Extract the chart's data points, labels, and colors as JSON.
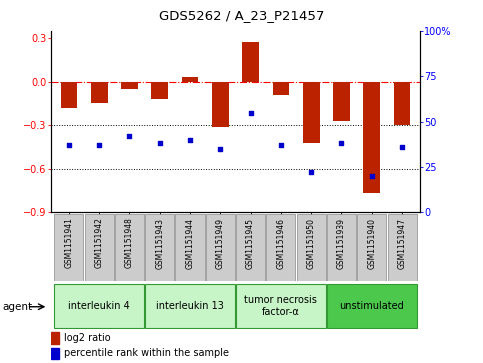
{
  "title": "GDS5262 / A_23_P21457",
  "samples": [
    "GSM1151941",
    "GSM1151942",
    "GSM1151948",
    "GSM1151943",
    "GSM1151944",
    "GSM1151949",
    "GSM1151945",
    "GSM1151946",
    "GSM1151950",
    "GSM1151939",
    "GSM1151940",
    "GSM1151947"
  ],
  "log2_ratio": [
    -0.18,
    -0.15,
    -0.05,
    -0.12,
    0.03,
    -0.31,
    0.27,
    -0.09,
    -0.42,
    -0.27,
    -0.77,
    -0.3
  ],
  "percentile_rank": [
    37,
    37,
    42,
    38,
    40,
    35,
    55,
    37,
    22,
    38,
    20,
    36
  ],
  "agents": [
    {
      "label": "interleukin 4",
      "start": 0,
      "end": 3,
      "color": "#c8f5c8"
    },
    {
      "label": "interleukin 13",
      "start": 3,
      "end": 6,
      "color": "#c8f5c8"
    },
    {
      "label": "tumor necrosis\nfactor-α",
      "start": 6,
      "end": 9,
      "color": "#c8f5c8"
    },
    {
      "label": "unstimulated",
      "start": 9,
      "end": 12,
      "color": "#4cc94c"
    }
  ],
  "ylim_left": [
    -0.9,
    0.35
  ],
  "ylim_right": [
    0,
    100
  ],
  "yticks_left": [
    -0.9,
    -0.6,
    -0.3,
    0,
    0.3
  ],
  "yticks_right": [
    0,
    25,
    50,
    75,
    100
  ],
  "bar_color": "#bb2200",
  "dot_color": "#0000cc",
  "background_color": "#ffffff",
  "bar_width": 0.55,
  "title_fontsize": 9.5,
  "axis_fontsize": 7,
  "sample_fontsize": 5.5,
  "agent_fontsize": 7,
  "legend_fontsize": 7
}
